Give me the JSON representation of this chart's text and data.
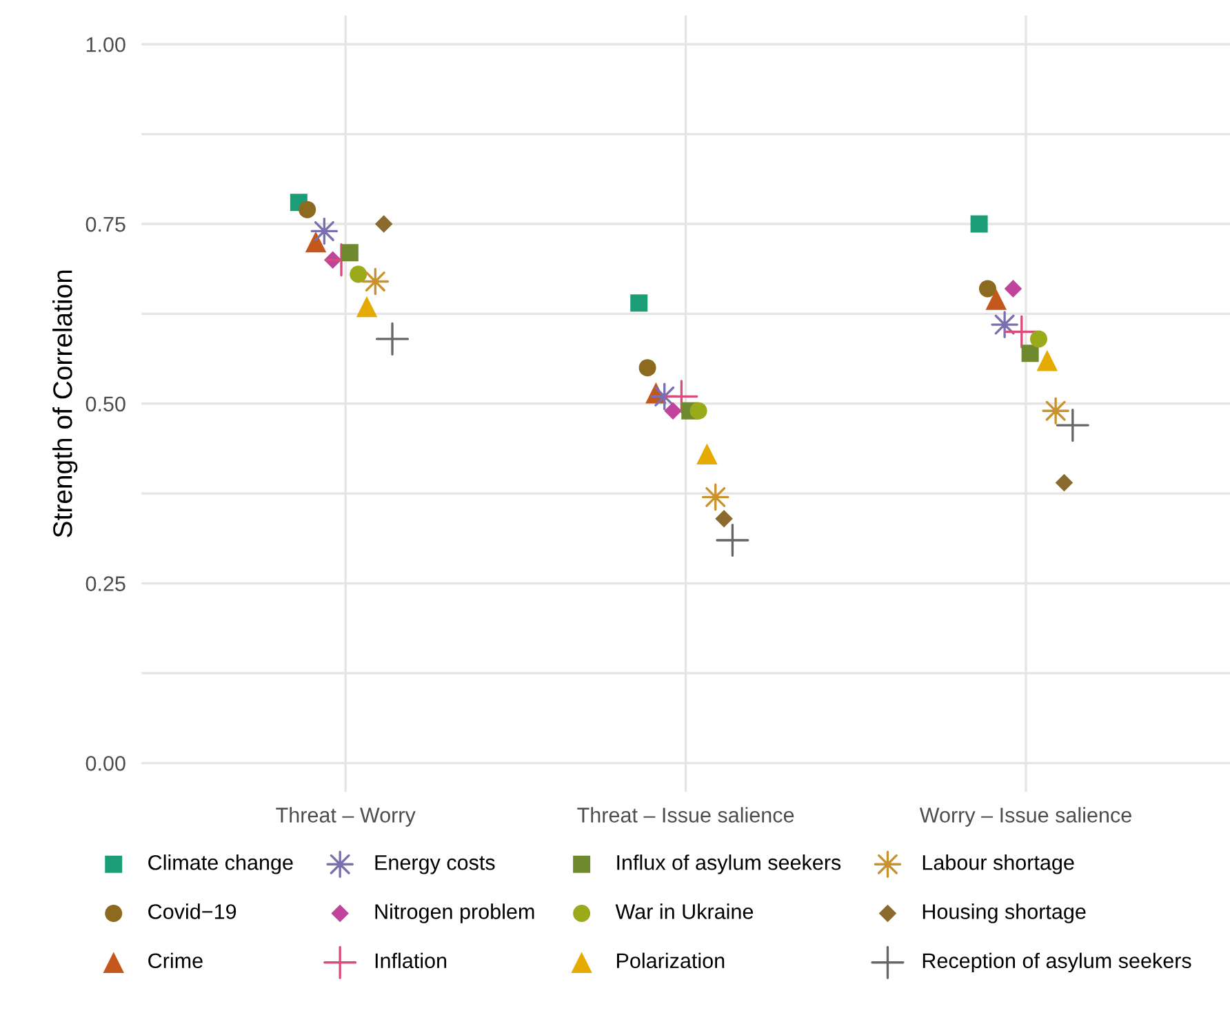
{
  "chart_data": {
    "type": "scatter",
    "ylabel": "Strength of Correlation",
    "categories": [
      "Threat – Worry",
      "Threat – Issue salience",
      "Worry – Issue salience"
    ],
    "ylim": [
      -0.04,
      1.04
    ],
    "yticks": [
      {
        "value": 0,
        "label": "0.00"
      },
      {
        "value": 0.125,
        "label": null
      },
      {
        "value": 0.25,
        "label": "0.25"
      },
      {
        "value": 0.375,
        "label": null
      },
      {
        "value": 0.5,
        "label": "0.50"
      },
      {
        "value": 0.625,
        "label": null
      },
      {
        "value": 0.75,
        "label": "0.75"
      },
      {
        "value": 0.875,
        "label": null
      },
      {
        "value": 1,
        "label": "1.00"
      }
    ],
    "grid": true,
    "legend": "bottom",
    "series": [
      {
        "name": "Climate change",
        "color": "#1b9e77",
        "marker": "square",
        "values": [
          0.78,
          0.64,
          0.75
        ]
      },
      {
        "name": "Covid−19",
        "color": "#8c6a1f",
        "marker": "circle",
        "values": [
          0.77,
          0.55,
          0.66
        ]
      },
      {
        "name": "Crime",
        "color": "#c4581c",
        "marker": "triangle",
        "values": [
          0.725,
          0.515,
          0.645
        ]
      },
      {
        "name": "Energy costs",
        "color": "#7a6fb0",
        "marker": "star",
        "values": [
          0.74,
          0.51,
          0.61
        ]
      },
      {
        "name": "Nitrogen problem",
        "color": "#c0449b",
        "marker": "diamond",
        "values": [
          0.7,
          0.49,
          0.66
        ]
      },
      {
        "name": "Inflation",
        "color": "#d94c7c",
        "marker": "cross",
        "values": [
          0.7,
          0.51,
          0.6
        ]
      },
      {
        "name": "Influx of asylum seekers",
        "color": "#6f8a2e",
        "marker": "square",
        "values": [
          0.71,
          0.49,
          0.57
        ]
      },
      {
        "name": "War in Ukraine",
        "color": "#9aaa1a",
        "marker": "circle",
        "values": [
          0.68,
          0.49,
          0.59
        ]
      },
      {
        "name": "Polarization",
        "color": "#e6ab02",
        "marker": "triangle",
        "values": [
          0.635,
          0.43,
          0.56
        ]
      },
      {
        "name": "Labour shortage",
        "color": "#c8922c",
        "marker": "star",
        "values": [
          0.67,
          0.37,
          0.49
        ]
      },
      {
        "name": "Housing shortage",
        "color": "#8b6a2e",
        "marker": "diamond",
        "values": [
          0.75,
          0.34,
          0.39
        ]
      },
      {
        "name": "Reception of asylum seekers",
        "color": "#666666",
        "marker": "cross",
        "values": [
          0.59,
          0.31,
          0.47
        ]
      }
    ]
  }
}
